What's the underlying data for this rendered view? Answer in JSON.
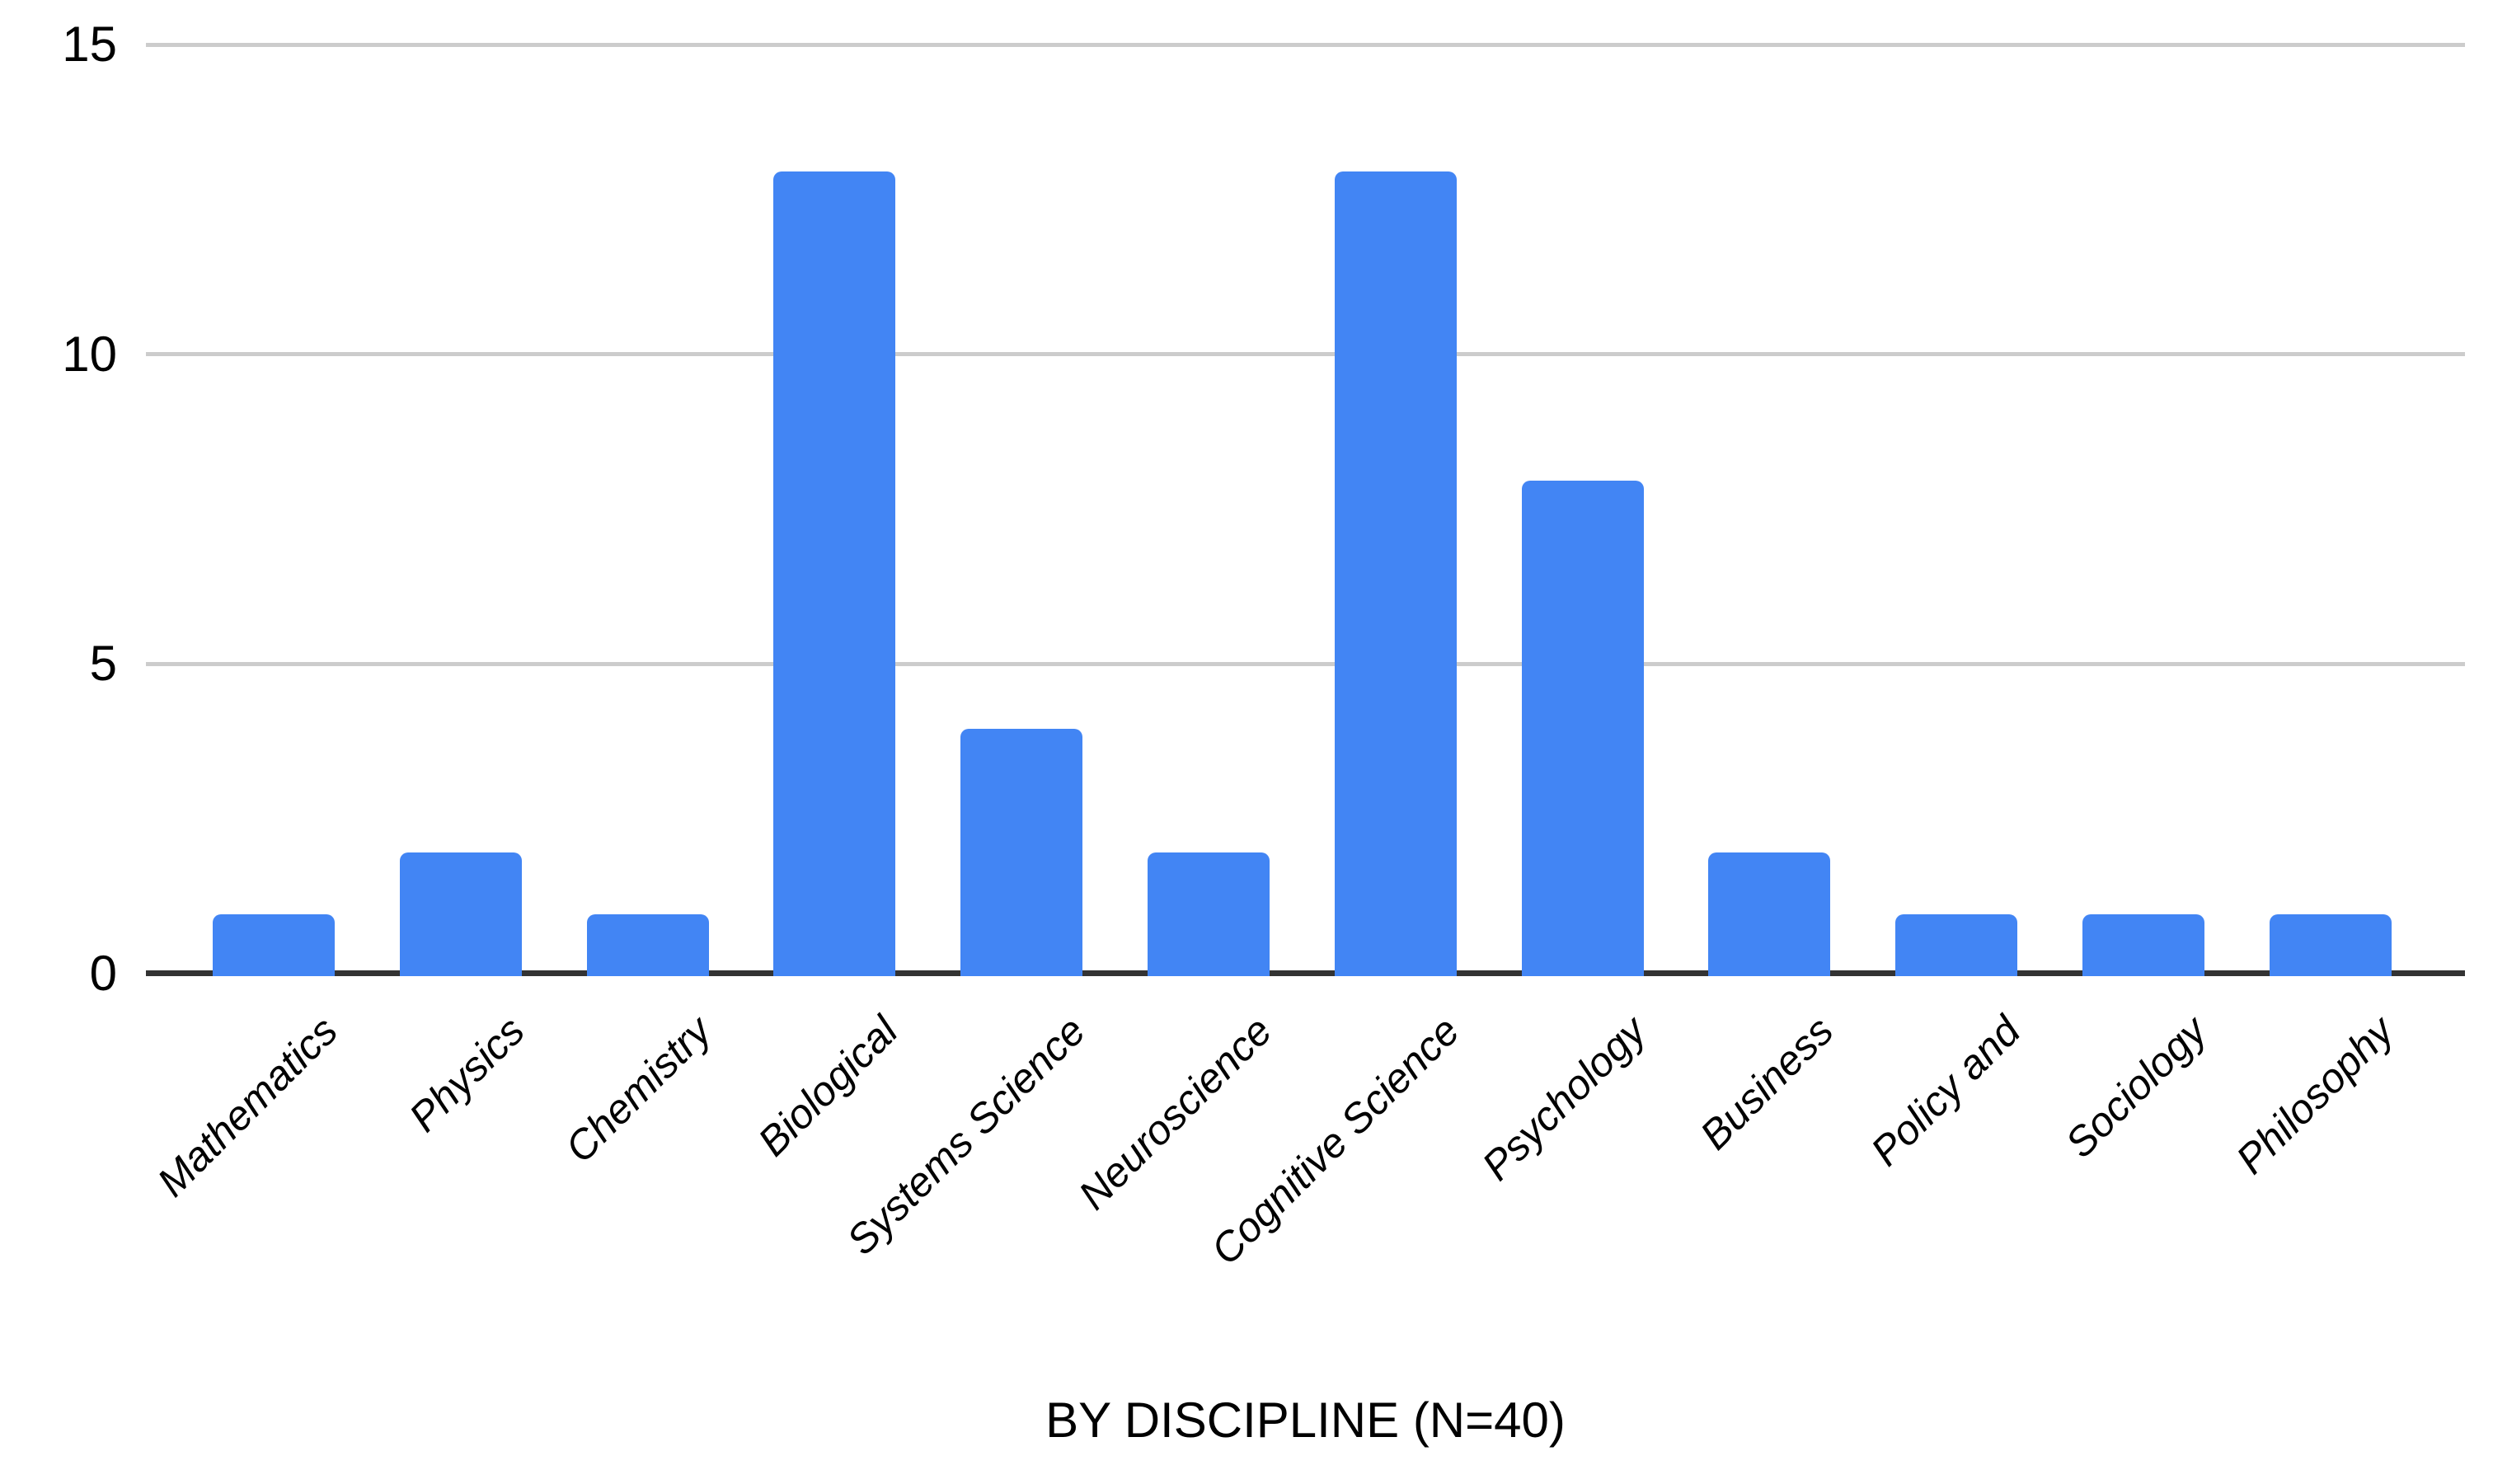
{
  "chart_data": {
    "type": "bar",
    "categories": [
      "Mathematics",
      "Physics",
      "Chemistry",
      "Biological",
      "Systems Science",
      "Neuroscience",
      "Cognitive Science",
      "Psychology",
      "Business",
      "Policy and",
      "Sociology",
      "Philosophy"
    ],
    "values": [
      1,
      2,
      1,
      13,
      4,
      2,
      13,
      8,
      2,
      1,
      1,
      1
    ],
    "title": "",
    "xlabel": "BY DISCIPLINE (N=40)",
    "ylabel": "",
    "ylim": [
      0,
      15
    ],
    "yticks": [
      0,
      5,
      10,
      15
    ],
    "grid": true,
    "legend_position": "none",
    "bar_color": "#4285f4",
    "gridline_color": "#cccccc",
    "axis_color": "#333333",
    "text_color": "#000000",
    "background_color": "#ffffff"
  }
}
